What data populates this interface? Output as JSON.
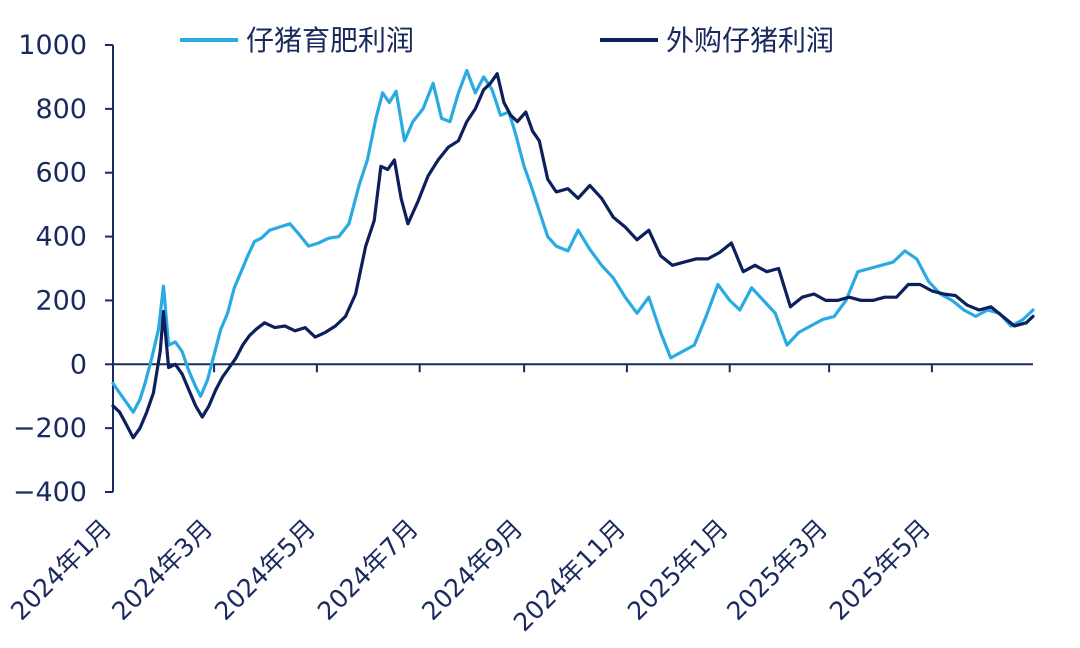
{
  "chart_data": {
    "type": "line",
    "title": "",
    "xlabel": "",
    "ylabel": "",
    "ylim": [
      -400,
      1000
    ],
    "yticks": [
      -400,
      -200,
      0,
      200,
      400,
      600,
      800,
      1000
    ],
    "ytick_labels": [
      "−400",
      "−200",
      "0",
      "200",
      "400",
      "600",
      "800",
      "1000"
    ],
    "x_start": "2024-01-01",
    "x_end": "2025-06-30",
    "xticks": [
      "2024-01-01",
      "2024-03-01",
      "2024-05-01",
      "2024-07-01",
      "2024-09-01",
      "2024-11-01",
      "2025-01-01",
      "2025-03-01",
      "2025-05-01"
    ],
    "xtick_labels": [
      "2024年1月",
      "2024年3月",
      "2024年5月",
      "2024年7月",
      "2024年9月",
      "2024年11月",
      "2025年1月",
      "2025年3月",
      "2025年5月"
    ],
    "legend_position": "top",
    "grid": false,
    "series": [
      {
        "name": "仔猪育肥利润",
        "color": "#29abe2",
        "points": [
          [
            "2024-01-01",
            -60
          ],
          [
            "2024-01-05",
            -90
          ],
          [
            "2024-01-09",
            -120
          ],
          [
            "2024-01-13",
            -150
          ],
          [
            "2024-01-17",
            -110
          ],
          [
            "2024-01-20",
            -60
          ],
          [
            "2024-01-24",
            20
          ],
          [
            "2024-01-28",
            110
          ],
          [
            "2024-01-31",
            245
          ],
          [
            "2024-02-03",
            60
          ],
          [
            "2024-02-07",
            70
          ],
          [
            "2024-02-11",
            40
          ],
          [
            "2024-02-15",
            -20
          ],
          [
            "2024-02-19",
            -70
          ],
          [
            "2024-02-22",
            -100
          ],
          [
            "2024-02-26",
            -50
          ],
          [
            "2024-03-01",
            30
          ],
          [
            "2024-03-05",
            110
          ],
          [
            "2024-03-09",
            160
          ],
          [
            "2024-03-13",
            240
          ],
          [
            "2024-03-17",
            290
          ],
          [
            "2024-03-21",
            340
          ],
          [
            "2024-03-25",
            385
          ],
          [
            "2024-03-29",
            395
          ],
          [
            "2024-04-03",
            420
          ],
          [
            "2024-04-09",
            430
          ],
          [
            "2024-04-15",
            440
          ],
          [
            "2024-04-20",
            410
          ],
          [
            "2024-04-26",
            370
          ],
          [
            "2024-05-02",
            380
          ],
          [
            "2024-05-08",
            395
          ],
          [
            "2024-05-14",
            400
          ],
          [
            "2024-05-20",
            440
          ],
          [
            "2024-05-26",
            560
          ],
          [
            "2024-05-31",
            640
          ],
          [
            "2024-06-05",
            770
          ],
          [
            "2024-06-09",
            850
          ],
          [
            "2024-06-13",
            820
          ],
          [
            "2024-06-17",
            855
          ],
          [
            "2024-06-22",
            700
          ],
          [
            "2024-06-27",
            760
          ],
          [
            "2024-07-03",
            800
          ],
          [
            "2024-07-09",
            880
          ],
          [
            "2024-07-14",
            770
          ],
          [
            "2024-07-19",
            760
          ],
          [
            "2024-07-24",
            850
          ],
          [
            "2024-07-29",
            920
          ],
          [
            "2024-08-03",
            850
          ],
          [
            "2024-08-08",
            900
          ],
          [
            "2024-08-13",
            860
          ],
          [
            "2024-08-18",
            780
          ],
          [
            "2024-08-23",
            790
          ],
          [
            "2024-08-27",
            720
          ],
          [
            "2024-09-01",
            620
          ],
          [
            "2024-09-05",
            560
          ],
          [
            "2024-09-10",
            480
          ],
          [
            "2024-09-15",
            400
          ],
          [
            "2024-09-20",
            370
          ],
          [
            "2024-09-27",
            355
          ],
          [
            "2024-10-03",
            420
          ],
          [
            "2024-10-10",
            360
          ],
          [
            "2024-10-17",
            310
          ],
          [
            "2024-10-24",
            270
          ],
          [
            "2024-10-31",
            210
          ],
          [
            "2024-11-07",
            160
          ],
          [
            "2024-11-14",
            210
          ],
          [
            "2024-11-21",
            100
          ],
          [
            "2024-11-27",
            20
          ],
          [
            "2024-12-04",
            40
          ],
          [
            "2024-12-11",
            60
          ],
          [
            "2024-12-18",
            150
          ],
          [
            "2024-12-25",
            250
          ],
          [
            "2025-01-01",
            200
          ],
          [
            "2025-01-07",
            170
          ],
          [
            "2025-01-14",
            240
          ],
          [
            "2025-01-21",
            200
          ],
          [
            "2025-01-28",
            160
          ],
          [
            "2025-02-04",
            60
          ],
          [
            "2025-02-11",
            100
          ],
          [
            "2025-02-18",
            120
          ],
          [
            "2025-02-25",
            140
          ],
          [
            "2025-03-04",
            150
          ],
          [
            "2025-03-11",
            200
          ],
          [
            "2025-03-18",
            290
          ],
          [
            "2025-03-25",
            300
          ],
          [
            "2025-04-01",
            310
          ],
          [
            "2025-04-08",
            320
          ],
          [
            "2025-04-15",
            355
          ],
          [
            "2025-04-22",
            330
          ],
          [
            "2025-04-29",
            260
          ],
          [
            "2025-05-06",
            220
          ],
          [
            "2025-05-13",
            200
          ],
          [
            "2025-05-20",
            170
          ],
          [
            "2025-05-27",
            150
          ],
          [
            "2025-06-03",
            170
          ],
          [
            "2025-06-10",
            160
          ],
          [
            "2025-06-17",
            120
          ],
          [
            "2025-06-24",
            140
          ],
          [
            "2025-06-30",
            170
          ]
        ]
      },
      {
        "name": "外购仔猪利润",
        "color": "#0d1f5c",
        "points": [
          [
            "2024-01-01",
            -130
          ],
          [
            "2024-01-05",
            -150
          ],
          [
            "2024-01-09",
            -190
          ],
          [
            "2024-01-13",
            -230
          ],
          [
            "2024-01-17",
            -200
          ],
          [
            "2024-01-21",
            -150
          ],
          [
            "2024-01-25",
            -90
          ],
          [
            "2024-01-29",
            40
          ],
          [
            "2024-01-31",
            165
          ],
          [
            "2024-02-03",
            -10
          ],
          [
            "2024-02-07",
            0
          ],
          [
            "2024-02-11",
            -30
          ],
          [
            "2024-02-15",
            -80
          ],
          [
            "2024-02-19",
            -130
          ],
          [
            "2024-02-23",
            -165
          ],
          [
            "2024-02-27",
            -130
          ],
          [
            "2024-03-02",
            -80
          ],
          [
            "2024-03-06",
            -40
          ],
          [
            "2024-03-10",
            -10
          ],
          [
            "2024-03-14",
            20
          ],
          [
            "2024-03-18",
            60
          ],
          [
            "2024-03-22",
            90
          ],
          [
            "2024-03-26",
            110
          ],
          [
            "2024-03-31",
            130
          ],
          [
            "2024-04-06",
            115
          ],
          [
            "2024-04-12",
            120
          ],
          [
            "2024-04-18",
            105
          ],
          [
            "2024-04-24",
            115
          ],
          [
            "2024-04-30",
            85
          ],
          [
            "2024-05-06",
            100
          ],
          [
            "2024-05-12",
            120
          ],
          [
            "2024-05-18",
            150
          ],
          [
            "2024-05-24",
            220
          ],
          [
            "2024-05-30",
            370
          ],
          [
            "2024-06-04",
            450
          ],
          [
            "2024-06-08",
            620
          ],
          [
            "2024-06-12",
            610
          ],
          [
            "2024-06-16",
            640
          ],
          [
            "2024-06-20",
            520
          ],
          [
            "2024-06-24",
            440
          ],
          [
            "2024-06-30",
            510
          ],
          [
            "2024-07-06",
            590
          ],
          [
            "2024-07-12",
            640
          ],
          [
            "2024-07-18",
            680
          ],
          [
            "2024-07-24",
            700
          ],
          [
            "2024-07-29",
            760
          ],
          [
            "2024-08-03",
            800
          ],
          [
            "2024-08-08",
            860
          ],
          [
            "2024-08-12",
            880
          ],
          [
            "2024-08-16",
            910
          ],
          [
            "2024-08-20",
            820
          ],
          [
            "2024-08-24",
            780
          ],
          [
            "2024-08-28",
            760
          ],
          [
            "2024-09-02",
            790
          ],
          [
            "2024-09-06",
            730
          ],
          [
            "2024-09-10",
            700
          ],
          [
            "2024-09-15",
            580
          ],
          [
            "2024-09-20",
            540
          ],
          [
            "2024-09-27",
            550
          ],
          [
            "2024-10-03",
            520
          ],
          [
            "2024-10-10",
            560
          ],
          [
            "2024-10-17",
            520
          ],
          [
            "2024-10-24",
            460
          ],
          [
            "2024-10-31",
            430
          ],
          [
            "2024-11-07",
            390
          ],
          [
            "2024-11-14",
            420
          ],
          [
            "2024-11-21",
            340
          ],
          [
            "2024-11-28",
            310
          ],
          [
            "2024-12-05",
            320
          ],
          [
            "2024-12-12",
            330
          ],
          [
            "2024-12-19",
            330
          ],
          [
            "2024-12-26",
            350
          ],
          [
            "2025-01-02",
            380
          ],
          [
            "2025-01-09",
            290
          ],
          [
            "2025-01-16",
            310
          ],
          [
            "2025-01-23",
            290
          ],
          [
            "2025-01-30",
            300
          ],
          [
            "2025-02-06",
            180
          ],
          [
            "2025-02-13",
            210
          ],
          [
            "2025-02-20",
            220
          ],
          [
            "2025-02-27",
            200
          ],
          [
            "2025-03-06",
            200
          ],
          [
            "2025-03-13",
            210
          ],
          [
            "2025-03-20",
            200
          ],
          [
            "2025-03-27",
            200
          ],
          [
            "2025-04-03",
            210
          ],
          [
            "2025-04-10",
            210
          ],
          [
            "2025-04-17",
            250
          ],
          [
            "2025-04-24",
            250
          ],
          [
            "2025-05-01",
            230
          ],
          [
            "2025-05-08",
            220
          ],
          [
            "2025-05-15",
            215
          ],
          [
            "2025-05-22",
            185
          ],
          [
            "2025-05-29",
            170
          ],
          [
            "2025-06-05",
            180
          ],
          [
            "2025-06-12",
            150
          ],
          [
            "2025-06-19",
            120
          ],
          [
            "2025-06-26",
            130
          ],
          [
            "2025-06-30",
            150
          ]
        ]
      }
    ]
  }
}
